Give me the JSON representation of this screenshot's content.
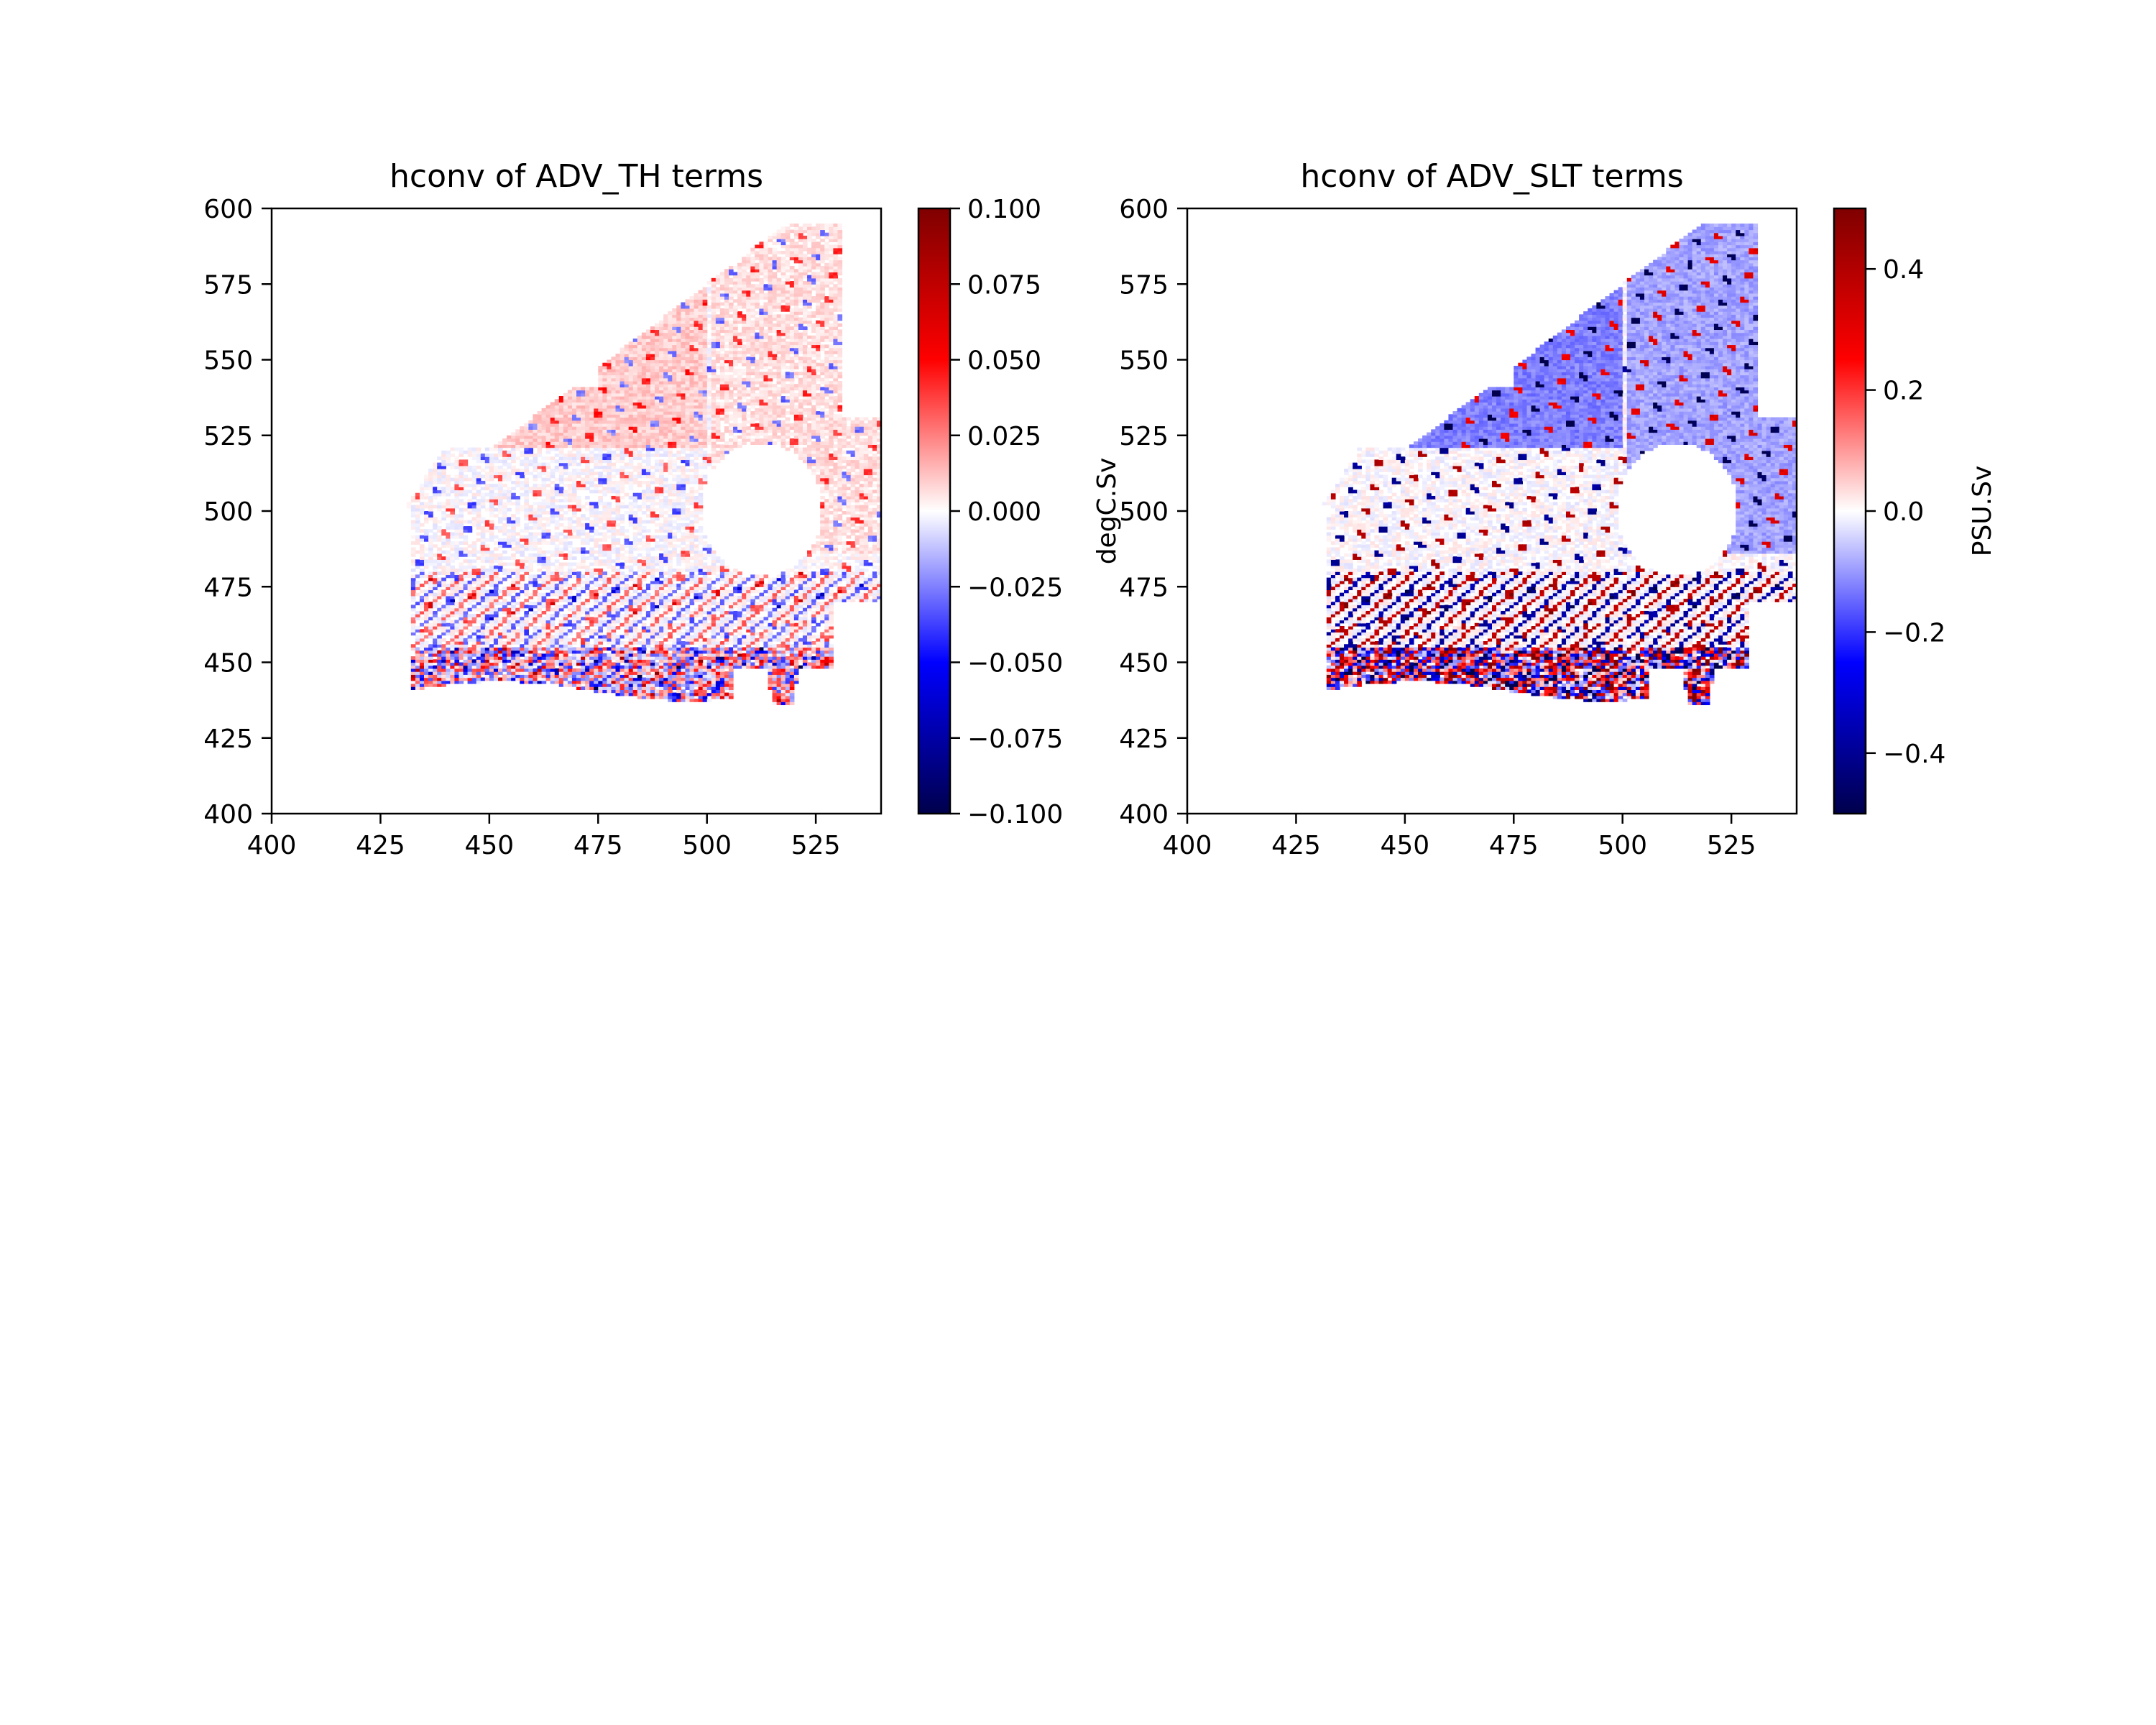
{
  "chart_data": [
    {
      "type": "heatmap",
      "title": "hconv of ADV_TH terms",
      "xlabel": "",
      "ylabel": "",
      "xlim": [
        400,
        540
      ],
      "ylim": [
        400,
        600
      ],
      "xticks": [
        400,
        425,
        450,
        475,
        500,
        525
      ],
      "yticks": [
        400,
        425,
        450,
        475,
        500,
        525,
        550,
        575,
        600
      ],
      "colormap": "seismic",
      "colorbar": {
        "label": "degC.Sv",
        "range": [
          -0.1,
          0.1
        ],
        "ticks": [
          "0.100",
          "0.075",
          "0.050",
          "0.025",
          "0.000",
          "−0.025",
          "−0.050",
          "−0.075",
          "−0.100"
        ]
      },
      "field": {
        "description": "domain masked region; near-zero interior with narrow positive/negative filaments",
        "typical_value_range": [
          -0.1,
          0.1
        ]
      }
    },
    {
      "type": "heatmap",
      "title": "hconv of ADV_SLT terms",
      "xlabel": "",
      "ylabel": "",
      "xlim": [
        400,
        540
      ],
      "ylim": [
        400,
        600
      ],
      "xticks": [
        400,
        425,
        450,
        475,
        500,
        525
      ],
      "yticks": [
        400,
        425,
        450,
        475,
        500,
        525,
        550,
        575,
        600
      ],
      "colormap": "seismic",
      "colorbar": {
        "label": "PSU.Sv",
        "range": [
          -0.5,
          0.5
        ],
        "ticks": [
          "0.4",
          "0.2",
          "0.0",
          "−0.2",
          "−0.4"
        ]
      },
      "field": {
        "description": "same region; stronger positive/negative filaments along coasts and channels",
        "typical_value_range": [
          -0.5,
          0.5
        ]
      }
    }
  ],
  "colors": {
    "neg_max": "#00004c",
    "neg_mid": "#0000ff",
    "zero": "#ffffff",
    "pos_mid": "#ff0000",
    "pos_max": "#7f0000"
  }
}
